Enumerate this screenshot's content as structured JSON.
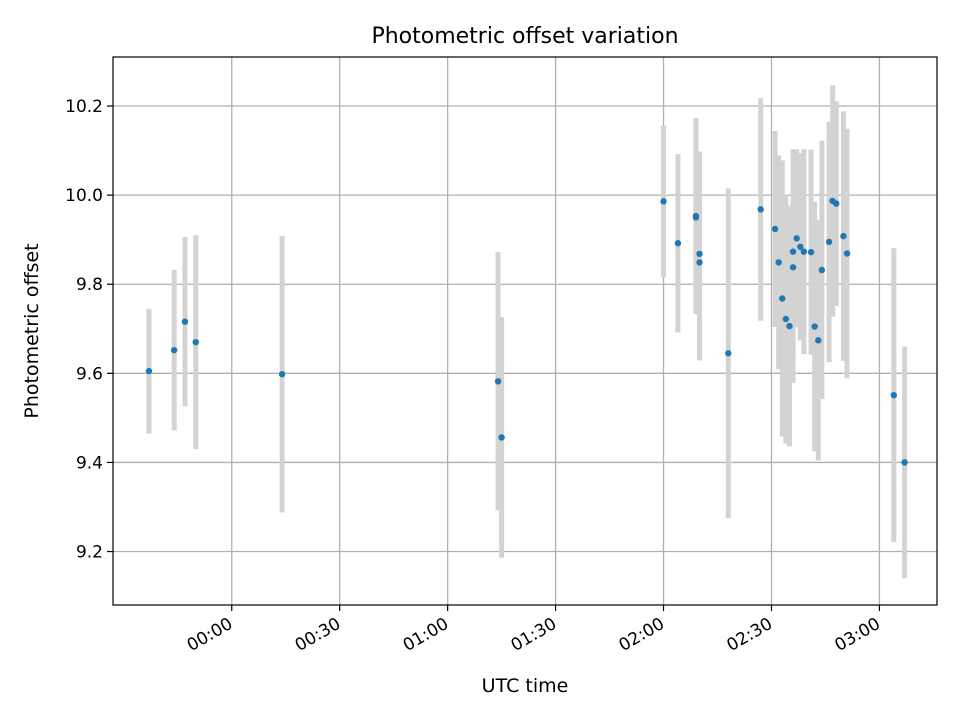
{
  "chart_data": {
    "type": "scatter",
    "title": "Photometric offset variation",
    "xlabel": "UTC time",
    "ylabel": "Photometric offset",
    "x_axis_type": "time",
    "xlim": [
      "23:27",
      "03:16"
    ],
    "ylim": [
      9.08,
      10.31
    ],
    "x_ticks": [
      "00:00",
      "00:30",
      "01:00",
      "01:30",
      "02:00",
      "02:30",
      "03:00"
    ],
    "y_ticks": [
      "9.2",
      "9.4",
      "9.6",
      "9.8",
      "10.0",
      "10.2"
    ],
    "grid": true,
    "colors": {
      "point": "#1f77b4",
      "errorbar": "#d3d3d3",
      "grid": "#b0b0b0"
    },
    "series": [
      {
        "points": [
          {
            "x": "23:37",
            "y": 9.605,
            "yerr": 0.14
          },
          {
            "x": "23:44",
            "y": 9.652,
            "yerr": 0.18
          },
          {
            "x": "23:47",
            "y": 9.716,
            "yerr": 0.19
          },
          {
            "x": "23:50",
            "y": 9.67,
            "yerr": 0.24
          },
          {
            "x": "00:14",
            "y": 9.598,
            "yerr": 0.31
          },
          {
            "x": "01:14",
            "y": 9.582,
            "yerr": 0.29
          },
          {
            "x": "01:15",
            "y": 9.456,
            "yerr": 0.27
          },
          {
            "x": "02:00",
            "y": 9.986,
            "yerr": 0.17
          },
          {
            "x": "02:04",
            "y": 9.892,
            "yerr": 0.2
          },
          {
            "x": "02:09",
            "y": 9.953,
            "yerr": 0.22
          },
          {
            "x": "02:09",
            "y": 9.95,
            "yerr": 0.21
          },
          {
            "x": "02:10",
            "y": 9.868,
            "yerr": 0.23
          },
          {
            "x": "02:10",
            "y": 9.849,
            "yerr": 0.22
          },
          {
            "x": "02:18",
            "y": 9.645,
            "yerr": 0.37
          },
          {
            "x": "02:27",
            "y": 9.968,
            "yerr": 0.25
          },
          {
            "x": "02:31",
            "y": 9.924,
            "yerr": 0.22
          },
          {
            "x": "02:32",
            "y": 9.849,
            "yerr": 0.24
          },
          {
            "x": "02:33",
            "y": 9.768,
            "yerr": 0.31
          },
          {
            "x": "02:34",
            "y": 9.722,
            "yerr": 0.28
          },
          {
            "x": "02:35",
            "y": 9.706,
            "yerr": 0.27
          },
          {
            "x": "02:36",
            "y": 9.838,
            "yerr": 0.26
          },
          {
            "x": "02:36",
            "y": 9.873,
            "yerr": 0.23
          },
          {
            "x": "02:37",
            "y": 9.903,
            "yerr": 0.2
          },
          {
            "x": "02:38",
            "y": 9.884,
            "yerr": 0.21
          },
          {
            "x": "02:39",
            "y": 9.873,
            "yerr": 0.23
          },
          {
            "x": "02:41",
            "y": 9.872,
            "yerr": 0.23
          },
          {
            "x": "02:42",
            "y": 9.705,
            "yerr": 0.28
          },
          {
            "x": "02:43",
            "y": 9.674,
            "yerr": 0.27
          },
          {
            "x": "02:44",
            "y": 9.832,
            "yerr": 0.29
          },
          {
            "x": "02:46",
            "y": 9.895,
            "yerr": 0.27
          },
          {
            "x": "02:47",
            "y": 9.987,
            "yerr": 0.26
          },
          {
            "x": "02:48",
            "y": 9.981,
            "yerr": 0.23
          },
          {
            "x": "02:50",
            "y": 9.908,
            "yerr": 0.28
          },
          {
            "x": "02:51",
            "y": 9.869,
            "yerr": 0.28
          },
          {
            "x": "03:04",
            "y": 9.551,
            "yerr": 0.33
          },
          {
            "x": "03:07",
            "y": 9.4,
            "yerr": 0.26
          }
        ]
      }
    ]
  }
}
